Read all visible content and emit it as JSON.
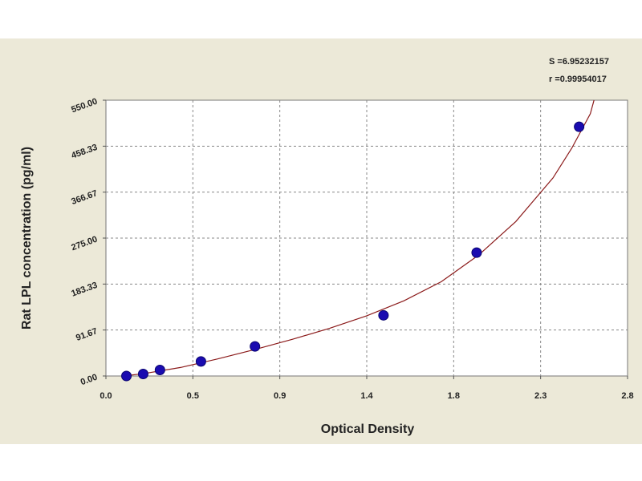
{
  "chart_data": {
    "type": "scatter",
    "xlabel": "Optical Density",
    "ylabel": "Rat LPL concentration (pg/ml)",
    "xlim": [
      0.0,
      2.8
    ],
    "ylim": [
      0.0,
      550.0
    ],
    "x_ticks": [
      "0.0",
      "0.5",
      "0.9",
      "1.4",
      "1.8",
      "2.3",
      "2.8"
    ],
    "y_ticks": [
      "0.00",
      "91.67",
      "183.33",
      "275.00",
      "366.67",
      "458.33",
      "550.00"
    ],
    "grid": true,
    "stats": [
      "S =6.95232157",
      "r =0.99954017"
    ],
    "colors": {
      "point": "#1a0bb0",
      "curve": "#8b1a1a",
      "plot_bg": "#ffffff",
      "frame_bg": "#ece9d8"
    },
    "points": [
      {
        "x": 0.11,
        "y": 0.0
      },
      {
        "x": 0.2,
        "y": 4.0
      },
      {
        "x": 0.29,
        "y": 12.0
      },
      {
        "x": 0.51,
        "y": 29.0
      },
      {
        "x": 0.8,
        "y": 59.0
      },
      {
        "x": 1.49,
        "y": 121.0
      },
      {
        "x": 1.99,
        "y": 246.0
      },
      {
        "x": 2.54,
        "y": 497.0
      }
    ],
    "fit_curve": [
      {
        "x": 0.09,
        "y": 0.0
      },
      {
        "x": 0.2,
        "y": 4.5
      },
      {
        "x": 0.4,
        "y": 17.0
      },
      {
        "x": 0.6,
        "y": 34.0
      },
      {
        "x": 0.8,
        "y": 53.0
      },
      {
        "x": 1.0,
        "y": 73.0
      },
      {
        "x": 1.2,
        "y": 95.0
      },
      {
        "x": 1.4,
        "y": 120.0
      },
      {
        "x": 1.6,
        "y": 150.0
      },
      {
        "x": 1.8,
        "y": 188.0
      },
      {
        "x": 2.0,
        "y": 241.0
      },
      {
        "x": 2.2,
        "y": 308.0
      },
      {
        "x": 2.4,
        "y": 395.0
      },
      {
        "x": 2.5,
        "y": 454.0
      },
      {
        "x": 2.6,
        "y": 523.0
      },
      {
        "x": 2.62,
        "y": 550.0
      }
    ]
  }
}
